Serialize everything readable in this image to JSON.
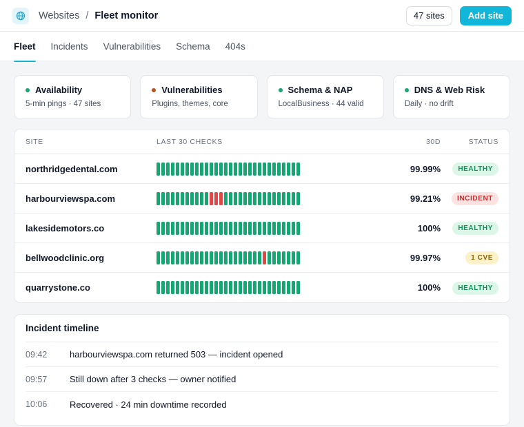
{
  "header": {
    "breadcrumb_parent": "Websites",
    "breadcrumb_separator": "/",
    "breadcrumb_current": "Fleet monitor",
    "sites_count_label": "47 sites",
    "add_site_label": "Add site",
    "icon": "globe-icon",
    "accent_color": "#11b6d9"
  },
  "tabs": [
    {
      "label": "Fleet",
      "active": true
    },
    {
      "label": "Incidents",
      "active": false
    },
    {
      "label": "Vulnerabilities",
      "active": false
    },
    {
      "label": "Schema",
      "active": false
    },
    {
      "label": "404s",
      "active": false
    }
  ],
  "cards": [
    {
      "title": "Availability",
      "subtitle": "5-min pings · 47 sites",
      "dot_color": "#16a671"
    },
    {
      "title": "Vulnerabilities",
      "subtitle": "Plugins, themes, core",
      "dot_color": "#b4531c"
    },
    {
      "title": "Schema & NAP",
      "subtitle": "LocalBusiness · 44 valid",
      "dot_color": "#16a671"
    },
    {
      "title": "DNS & Web Risk",
      "subtitle": "Daily · no drift",
      "dot_color": "#16a671"
    }
  ],
  "table": {
    "headers": {
      "site": "SITE",
      "checks": "LAST 30 CHECKS",
      "uptime": "30D",
      "status": "STATUS"
    },
    "rows": [
      {
        "site": "northridgedental.com",
        "uptime": "99.99%",
        "status": "HEALTHY",
        "status_kind": "healthy",
        "failed_checks": []
      },
      {
        "site": "harbourviewspa.com",
        "uptime": "99.21%",
        "status": "INCIDENT",
        "status_kind": "incident",
        "failed_checks": [
          11,
          12,
          13
        ]
      },
      {
        "site": "lakesidemotors.co",
        "uptime": "100%",
        "status": "HEALTHY",
        "status_kind": "healthy",
        "failed_checks": []
      },
      {
        "site": "bellwoodclinic.org",
        "uptime": "99.97%",
        "status": "1 CVE",
        "status_kind": "cve",
        "failed_checks": [
          22
        ]
      },
      {
        "site": "quarrystone.co",
        "uptime": "100%",
        "status": "HEALTHY",
        "status_kind": "healthy",
        "failed_checks": []
      }
    ],
    "check_count": 30,
    "ok_color": "#16a671",
    "fail_color": "#e04848"
  },
  "timeline": {
    "title": "Incident timeline",
    "events": [
      {
        "time": "09:42",
        "text": "harbourviewspa.com returned 503 — incident opened"
      },
      {
        "time": "09:57",
        "text": "Still down after 3 checks — owner notified"
      },
      {
        "time": "10:06",
        "text": "Recovered · 24 min downtime recorded"
      }
    ]
  }
}
